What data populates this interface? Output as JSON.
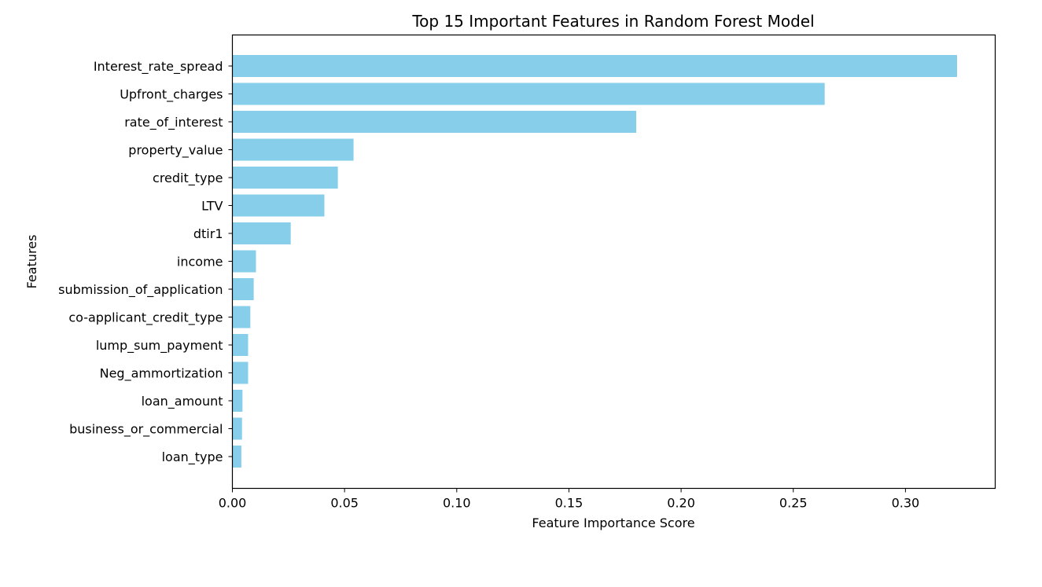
{
  "chart_data": {
    "type": "bar",
    "orientation": "horizontal",
    "title": "Top 15 Important Features in Random Forest Model",
    "xlabel": "Feature Importance Score",
    "ylabel": "Features",
    "xlim": [
      0,
      0.34
    ],
    "xticks": [
      0.0,
      0.05,
      0.1,
      0.15,
      0.2,
      0.25,
      0.3
    ],
    "xtick_labels": [
      "0.00",
      "0.05",
      "0.10",
      "0.15",
      "0.20",
      "0.25",
      "0.30"
    ],
    "categories": [
      "Interest_rate_spread",
      "Upfront_charges",
      "rate_of_interest",
      "property_value",
      "credit_type",
      "LTV",
      "dtir1",
      "income",
      "submission_of_application",
      "co-applicant_credit_type",
      "lump_sum_payment",
      "Neg_ammortization",
      "loan_amount",
      "business_or_commercial",
      "loan_type"
    ],
    "values": [
      0.323,
      0.264,
      0.18,
      0.054,
      0.047,
      0.041,
      0.026,
      0.0105,
      0.0095,
      0.008,
      0.007,
      0.007,
      0.0045,
      0.0043,
      0.004
    ],
    "bar_color": "#87ceeb",
    "grid": false,
    "legend": false
  }
}
